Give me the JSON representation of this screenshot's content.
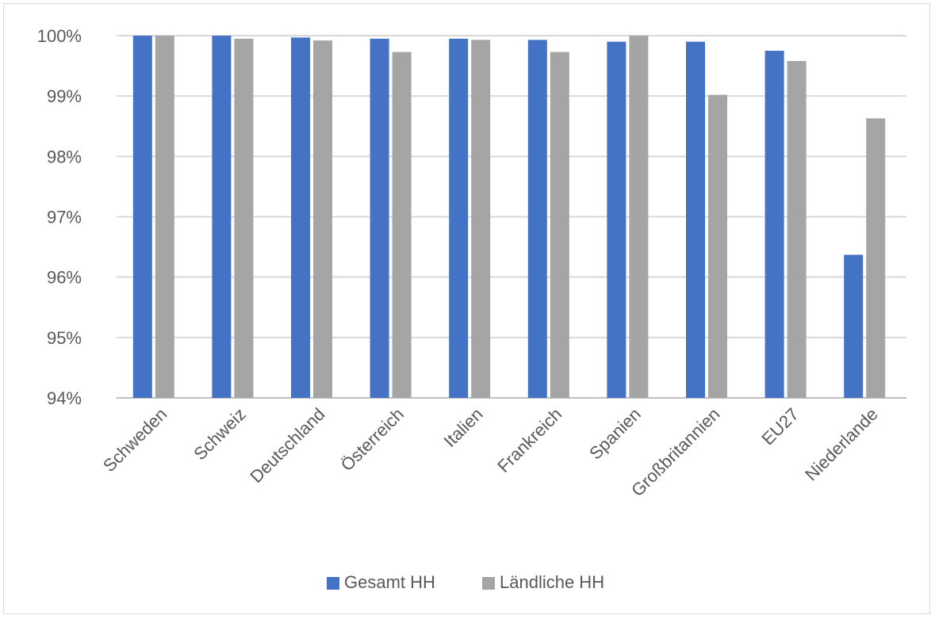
{
  "chart_data": {
    "type": "bar",
    "categories": [
      "Schweden",
      "Schweiz",
      "Deutschland",
      "Österreich",
      "Italien",
      "Frankreich",
      "Spanien",
      "Großbritannien",
      "EU27",
      "Niederlande"
    ],
    "series": [
      {
        "name": "Gesamt HH",
        "color": "#4472c4",
        "values": [
          100.0,
          100.0,
          99.97,
          99.95,
          99.95,
          99.93,
          99.9,
          99.9,
          99.75,
          96.37
        ]
      },
      {
        "name": "Ländliche HH",
        "color": "#a5a5a5",
        "values": [
          100.0,
          99.95,
          99.92,
          99.73,
          99.93,
          99.73,
          100.0,
          99.02,
          99.58,
          98.63
        ]
      }
    ],
    "yticks": [
      "100%",
      "99%",
      "98%",
      "97%",
      "96%",
      "95%",
      "94%"
    ],
    "ylim": [
      94,
      100
    ],
    "ytick_values": [
      100,
      99,
      98,
      97,
      96,
      95,
      94
    ],
    "grid": true,
    "legend_position": "bottom",
    "xlabel": "",
    "ylabel": "",
    "title": ""
  }
}
